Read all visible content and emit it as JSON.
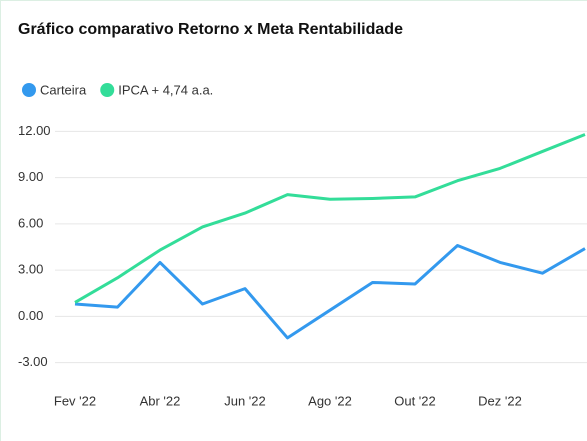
{
  "chart_data": {
    "type": "line",
    "title": "Gráfico comparativo Retorno x Meta Rentabilidade",
    "categories": [
      "Fev '22",
      null,
      "Abr '22",
      null,
      "Jun '22",
      null,
      "Ago '22",
      null,
      "Out '22",
      null,
      "Dez '22",
      null,
      null
    ],
    "series": [
      {
        "name": "Carteira",
        "color": "#3399ee",
        "values": [
          0.8,
          0.6,
          3.5,
          0.8,
          1.8,
          -1.4,
          0.4,
          2.2,
          2.1,
          4.6,
          3.5,
          2.8,
          4.4
        ]
      },
      {
        "name": "IPCA + 4,74 a.a.",
        "color": "#33dd99",
        "values": [
          0.9,
          2.5,
          4.3,
          5.8,
          6.7,
          7.9,
          7.6,
          7.65,
          7.75,
          8.8,
          9.6,
          10.7,
          11.8
        ]
      }
    ],
    "ylim": [
      -4,
      13
    ],
    "yticks": [
      {
        "value": -3,
        "label": "-3.00"
      },
      {
        "value": 0,
        "label": "0.00"
      },
      {
        "value": 3,
        "label": "3.00"
      },
      {
        "value": 6,
        "label": "6.00"
      },
      {
        "value": 9,
        "label": "9.00"
      },
      {
        "value": 12,
        "label": "12.00"
      }
    ],
    "grid": true,
    "legend": "top-left"
  }
}
